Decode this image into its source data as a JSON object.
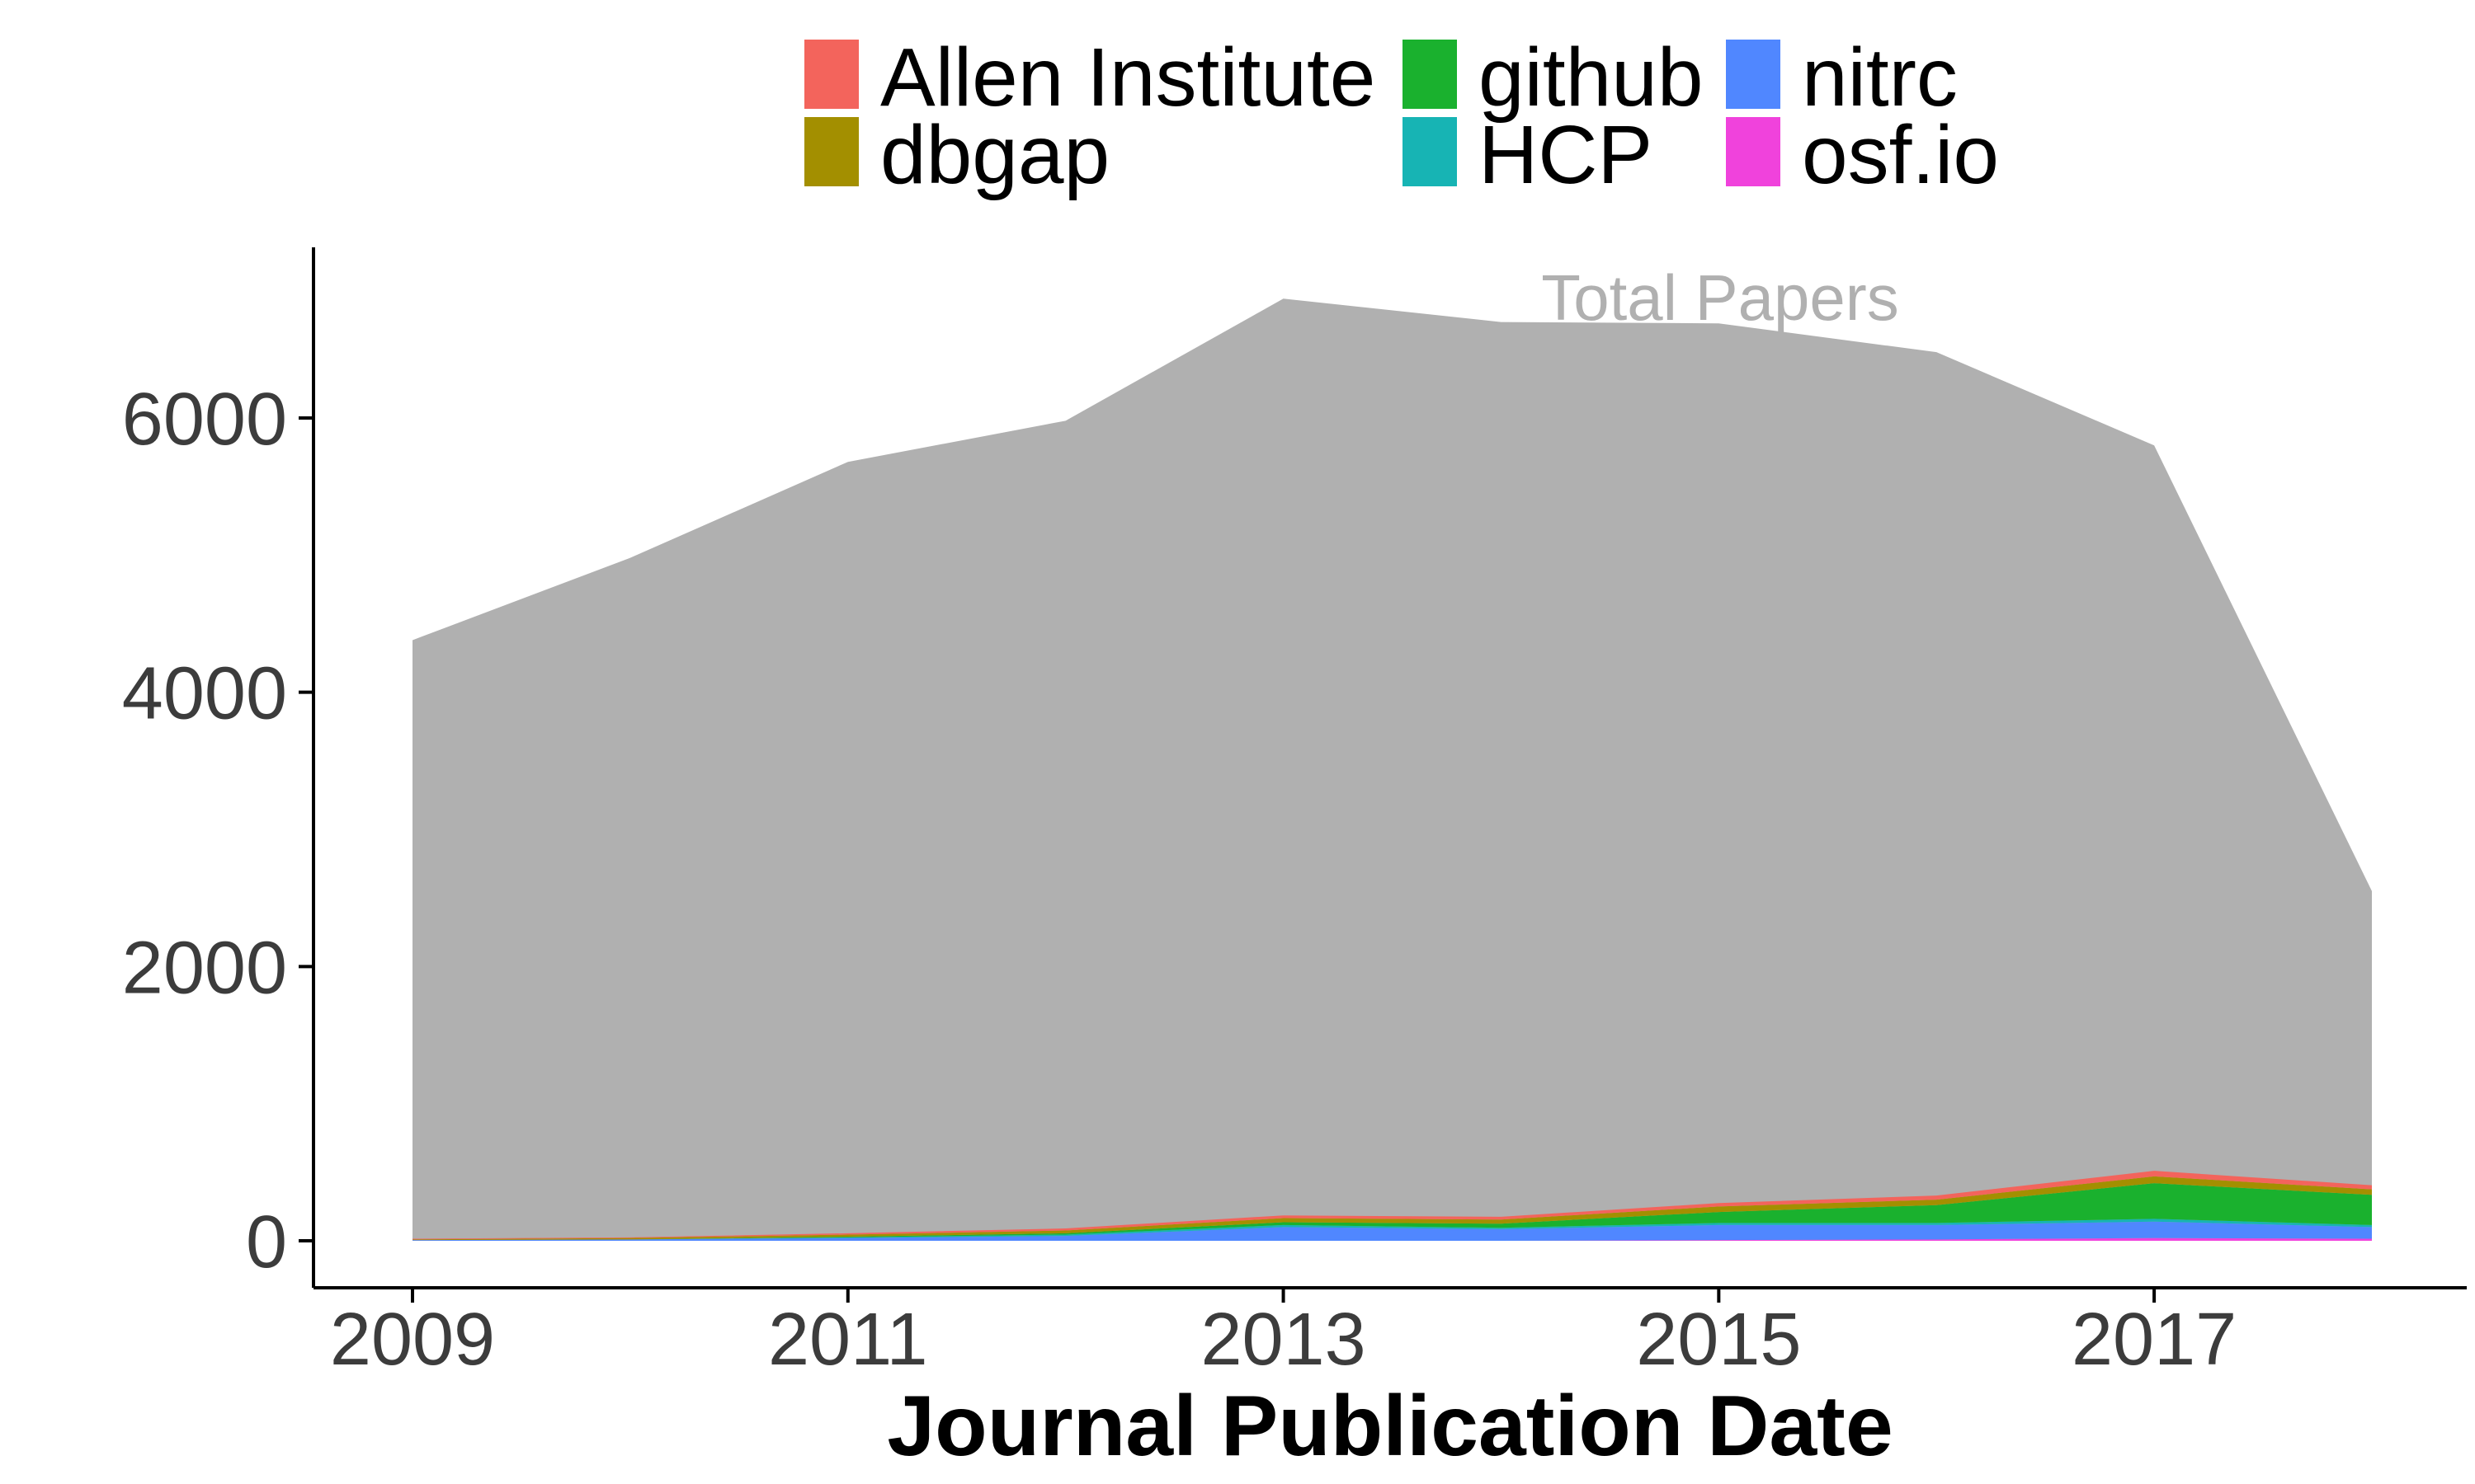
{
  "chart_data": {
    "type": "area",
    "xlabel": "Journal Publication Date",
    "ylabel": "",
    "x": [
      2009,
      2010,
      2011,
      2012,
      2013,
      2014,
      2015,
      2016,
      2017,
      2018
    ],
    "xticks": [
      "2009",
      "2011",
      "2013",
      "2015",
      "2017"
    ],
    "yticks": [
      "0",
      "2000",
      "4000",
      "6000"
    ],
    "xlim": [
      2009,
      2018
    ],
    "ylim": [
      0,
      7200
    ],
    "grid": false,
    "legend_position": "top",
    "total": {
      "label": "Total Papers",
      "color": "#b0b0b0",
      "values": [
        4380,
        4980,
        5680,
        5980,
        6870,
        6700,
        6690,
        6480,
        5800,
        2550
      ]
    },
    "series": [
      {
        "name": "osf.io",
        "color": "#f042dc",
        "values": [
          0,
          0,
          0,
          0,
          0,
          0,
          5,
          10,
          20,
          15
        ]
      },
      {
        "name": "nitrc",
        "color": "#5087ff",
        "values": [
          5,
          10,
          20,
          35,
          100,
          85,
          110,
          105,
          120,
          85
        ]
      },
      {
        "name": "HCP",
        "color": "#17b4b4",
        "values": [
          0,
          0,
          5,
          10,
          15,
          10,
          15,
          15,
          20,
          15
        ]
      },
      {
        "name": "github",
        "color": "#1ab12e",
        "values": [
          0,
          0,
          5,
          10,
          20,
          30,
          80,
          130,
          260,
          220
        ]
      },
      {
        "name": "dbgap",
        "color": "#a38f00",
        "values": [
          5,
          10,
          15,
          20,
          30,
          30,
          40,
          40,
          50,
          40
        ]
      },
      {
        "name": "Allen Institute",
        "color": "#f3645c",
        "values": [
          5,
          5,
          10,
          15,
          20,
          20,
          25,
          30,
          40,
          30
        ]
      }
    ],
    "legend_order": [
      "Allen Institute",
      "dbgap",
      "github",
      "HCP",
      "nitrc",
      "osf.io"
    ]
  }
}
